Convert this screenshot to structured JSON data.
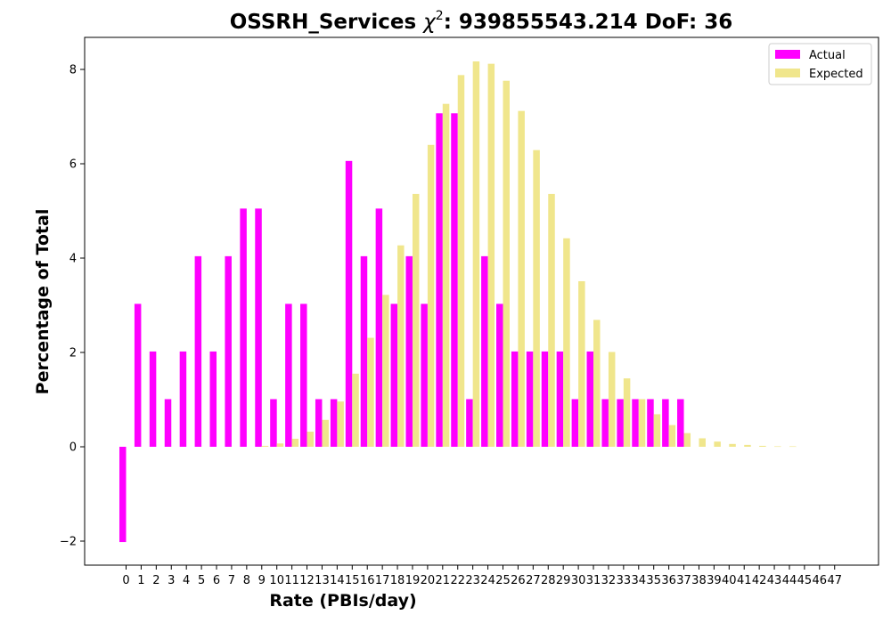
{
  "chart_data": {
    "type": "bar",
    "title": {
      "prefix": "OSSRH_Services ",
      "chi": "χ",
      "sup": "2",
      "suffix": ": 939855543.214 DoF: 36"
    },
    "xlabel": "Rate (PBIs/day)",
    "ylabel": "Percentage of Total",
    "ylim": [
      -2.5,
      8.7
    ],
    "yticks": [
      -2,
      0,
      2,
      4,
      6,
      8
    ],
    "ytick_labels": [
      "−2",
      "0",
      "2",
      "4",
      "6",
      "8"
    ],
    "categories": [
      "0",
      "1",
      "2",
      "3",
      "4",
      "5",
      "6",
      "7",
      "8",
      "9",
      "10",
      "11",
      "12",
      "13",
      "14",
      "15",
      "16",
      "17",
      "18",
      "19",
      "20",
      "21",
      "22",
      "23",
      "24",
      "25",
      "26",
      "27",
      "28",
      "29",
      "30",
      "31",
      "32",
      "33",
      "34",
      "35",
      "36",
      "37",
      "38",
      "39",
      "40",
      "41",
      "42",
      "43",
      "44",
      "45",
      "46",
      "47"
    ],
    "legend_position": "top-right",
    "series": [
      {
        "name": "Actual",
        "color": "#ff00ff",
        "values": [
          -2.02,
          3.03,
          2.02,
          1.01,
          2.02,
          4.04,
          2.02,
          4.04,
          5.05,
          5.05,
          1.01,
          3.03,
          3.03,
          1.01,
          1.01,
          6.06,
          4.04,
          5.05,
          3.03,
          4.04,
          3.03,
          7.07,
          7.07,
          1.01,
          4.04,
          3.03,
          2.02,
          2.02,
          2.02,
          2.02,
          1.01,
          2.02,
          1.01,
          1.01,
          1.01,
          1.01,
          1.01,
          1.01,
          0,
          0,
          0,
          0,
          0,
          0,
          0,
          0,
          0,
          0
        ]
      },
      {
        "name": "Expected",
        "color": "#f0e68c",
        "values": [
          0,
          0,
          0,
          0,
          0,
          0,
          0,
          0,
          0,
          0.02,
          0.07,
          0.17,
          0.32,
          0.57,
          0.96,
          1.55,
          2.31,
          3.22,
          4.27,
          5.36,
          6.4,
          7.27,
          7.88,
          8.17,
          8.12,
          7.76,
          7.12,
          6.29,
          5.36,
          4.42,
          3.51,
          2.69,
          2.01,
          1.45,
          1.01,
          0.69,
          0.46,
          0.29,
          0.18,
          0.11,
          0.06,
          0.04,
          0.02,
          0.01,
          0.01,
          0,
          0,
          0
        ]
      }
    ]
  }
}
